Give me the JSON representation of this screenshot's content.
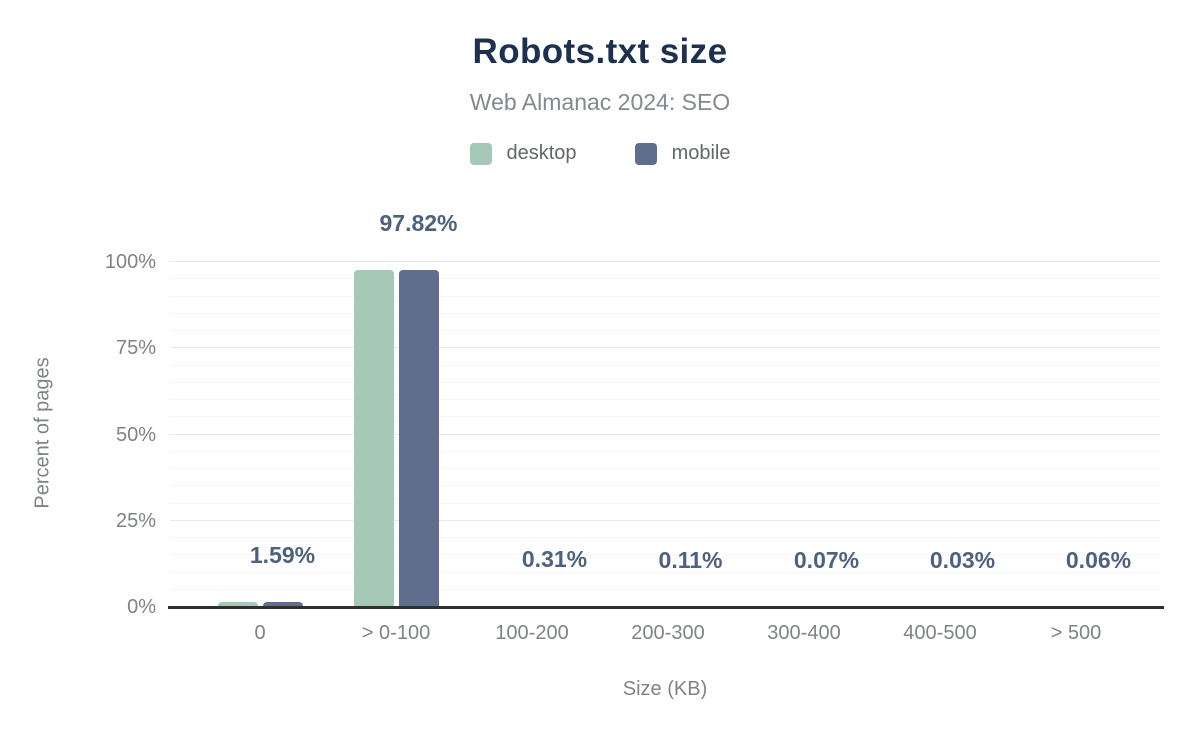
{
  "header": {
    "title": "Robots.txt size",
    "subtitle": "Web Almanac 2024: SEO"
  },
  "chart_data": {
    "type": "bar",
    "title": "Robots.txt size",
    "subtitle": "Web Almanac 2024: SEO",
    "categories": [
      "0",
      "> 0-100",
      "100-200",
      "200-300",
      "300-400",
      "400-500",
      "> 500"
    ],
    "series": [
      {
        "name": "desktop",
        "color": "#a5c9b6",
        "values": [
          1.59,
          97.82,
          0.31,
          0.11,
          0.07,
          0.03,
          0.06
        ]
      },
      {
        "name": "mobile",
        "color": "#5e6e8c",
        "values": [
          1.59,
          97.82,
          0.31,
          0.11,
          0.07,
          0.03,
          0.06
        ]
      }
    ],
    "data_labels": [
      "1.59%",
      "97.82%",
      "0.31%",
      "0.11%",
      "0.07%",
      "0.03%",
      "0.06%"
    ],
    "xlabel": "Size (KB)",
    "ylabel": "Percent of pages",
    "ylim": [
      0,
      100
    ],
    "yticks": [
      "0%",
      "25%",
      "50%",
      "75%",
      "100%"
    ],
    "ytick_values": [
      0,
      25,
      50,
      75,
      100
    ],
    "grid": "horizontal minor every 5%, major every 25%",
    "legend_position": "top-center"
  },
  "colors": {
    "title": "#1e3050",
    "subtitle": "#85898f",
    "axis_text": "#7f8387",
    "data_label": "#4d6180",
    "axis_line": "#2f2f2f",
    "grid_minor": "#f5f5f5",
    "grid_major": "#e9e9e9",
    "desktop": "#a5c9b6",
    "mobile": "#5e6e8c"
  }
}
